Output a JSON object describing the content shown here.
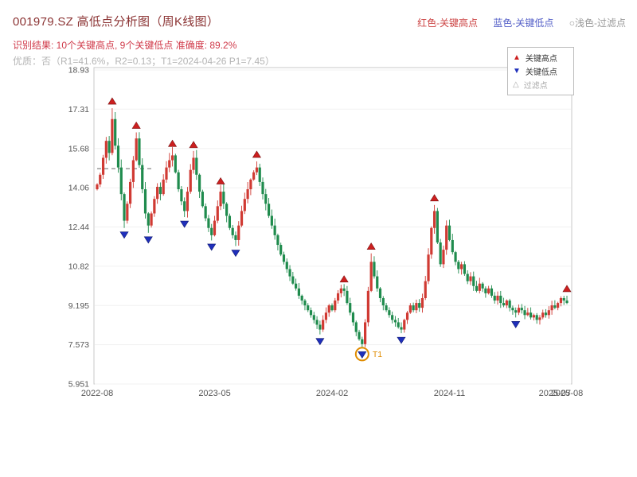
{
  "header": {
    "title": "001979.SZ 高低点分析图（周K线图）",
    "legend_inline": [
      {
        "label": "红色-关键高点",
        "color": "#cc4444"
      },
      {
        "label": "蓝色-关键低点",
        "color": "#5560c8"
      },
      {
        "label": "○浅色-过滤点",
        "color": "#999999"
      }
    ],
    "result_line": "识别结果: 10个关键高点, 9个关键低点  准确度: 89.2%",
    "quality_line": "优质：否（R1=41.6%，R2=0.13；T1=2024-04-26 P1=7.45）"
  },
  "chart_data": {
    "type": "candlestick",
    "symbol": "001979.SZ",
    "period": "weekly",
    "title": "001979.SZ 高低点分析图（周K线图）",
    "ylim": [
      5.951,
      18.93
    ],
    "y_ticks": {
      "labels": [
        "18.93",
        "17.31",
        "15.68",
        "14.06",
        "12.44",
        "10.82",
        "9.195",
        "7.573",
        "5.951"
      ],
      "values": [
        18.93,
        17.31,
        15.68,
        14.06,
        12.44,
        10.82,
        9.195,
        7.573,
        5.951
      ]
    },
    "x_ticks": [
      "2022-08",
      "2023-05",
      "2024-02",
      "2024-11",
      "2025-08"
    ],
    "tick_weeks": [
      0,
      39,
      78,
      117,
      156
    ],
    "x_tick_overlap": {
      "label": "2025-07",
      "week": 152
    },
    "weeks_total": 156,
    "first_open": 14.0,
    "up_color": "#d03a33",
    "down_color": "#1f8b4d",
    "grid": true,
    "closes": [
      14.2,
      14.6,
      15.3,
      16.0,
      15.5,
      16.9,
      15.8,
      14.9,
      13.8,
      12.7,
      13.4,
      14.3,
      15.2,
      16.1,
      15.0,
      14.0,
      13.0,
      12.5,
      13.0,
      13.6,
      14.1,
      13.8,
      14.4,
      14.9,
      15.2,
      15.4,
      14.7,
      14.0,
      13.5,
      13.1,
      13.9,
      14.8,
      15.3,
      14.6,
      13.9,
      13.3,
      12.8,
      12.4,
      12.1,
      12.7,
      13.3,
      13.9,
      13.4,
      12.9,
      12.4,
      12.1,
      11.9,
      12.5,
      13.1,
      13.6,
      14.0,
      14.4,
      14.7,
      14.9,
      14.3,
      13.8,
      13.4,
      12.9,
      12.5,
      12.1,
      11.7,
      11.3,
      11.0,
      10.7,
      10.4,
      10.1,
      9.9,
      9.6,
      9.4,
      9.2,
      9.0,
      8.8,
      8.6,
      8.4,
      8.2,
      8.6,
      8.9,
      9.2,
      9.0,
      9.4,
      9.7,
      9.9,
      9.8,
      9.3,
      8.9,
      8.5,
      8.1,
      7.8,
      7.6,
      8.5,
      9.8,
      11.0,
      10.4,
      9.9,
      9.5,
      9.2,
      9.0,
      8.8,
      8.6,
      8.5,
      8.3,
      8.2,
      8.6,
      8.9,
      9.2,
      9.0,
      9.3,
      9.1,
      9.5,
      10.2,
      11.3,
      12.4,
      13.1,
      11.8,
      10.9,
      11.5,
      12.5,
      11.9,
      11.4,
      11.0,
      10.7,
      10.9,
      10.5,
      10.2,
      10.4,
      10.0,
      9.8,
      10.1,
      9.9,
      9.7,
      9.9,
      9.6,
      9.4,
      9.6,
      9.3,
      9.2,
      9.4,
      9.1,
      9.0,
      8.9,
      9.1,
      9.0,
      8.8,
      8.9,
      8.7,
      8.8,
      8.6,
      8.7,
      8.9,
      8.8,
      9.0,
      9.2,
      9.1,
      9.3,
      9.5,
      9.4,
      9.3
    ],
    "key_highs": [
      {
        "week": 5,
        "price": 17.35
      },
      {
        "week": 13,
        "price": 16.35
      },
      {
        "week": 25,
        "price": 15.6
      },
      {
        "week": 32,
        "price": 15.55
      },
      {
        "week": 41,
        "price": 14.05
      },
      {
        "week": 53,
        "price": 15.15
      },
      {
        "week": 82,
        "price": 10.0
      },
      {
        "week": 91,
        "price": 11.35
      },
      {
        "week": 112,
        "price": 13.35
      },
      {
        "week": 156,
        "price": 9.6
      }
    ],
    "key_lows": [
      {
        "week": 9,
        "price": 12.4
      },
      {
        "week": 17,
        "price": 12.2
      },
      {
        "week": 29,
        "price": 12.85
      },
      {
        "week": 38,
        "price": 11.9
      },
      {
        "week": 46,
        "price": 11.65
      },
      {
        "week": 74,
        "price": 8.0
      },
      {
        "week": 88,
        "price": 7.45
      },
      {
        "week": 101,
        "price": 8.05
      },
      {
        "week": 139,
        "price": 8.7
      }
    ],
    "filtered_points": [
      {
        "week": 88,
        "price": 7.45,
        "label": "T1",
        "circle_color": "#e08c00"
      }
    ],
    "dashed_segment": {
      "from_week": 0,
      "to_week": 18,
      "price": 14.85
    },
    "legend_box": [
      {
        "label": "关键高点",
        "marker": "up-triangle",
        "color": "#cc1f1f",
        "glyph": "▲"
      },
      {
        "label": "关键低点",
        "marker": "down-triangle",
        "color": "#1f2fbb",
        "glyph": "▼"
      },
      {
        "label": "过滤点",
        "marker": "hollow-triangle",
        "color": "#aaaaaa",
        "glyph": "△"
      }
    ],
    "annotations": [
      "T1"
    ]
  }
}
